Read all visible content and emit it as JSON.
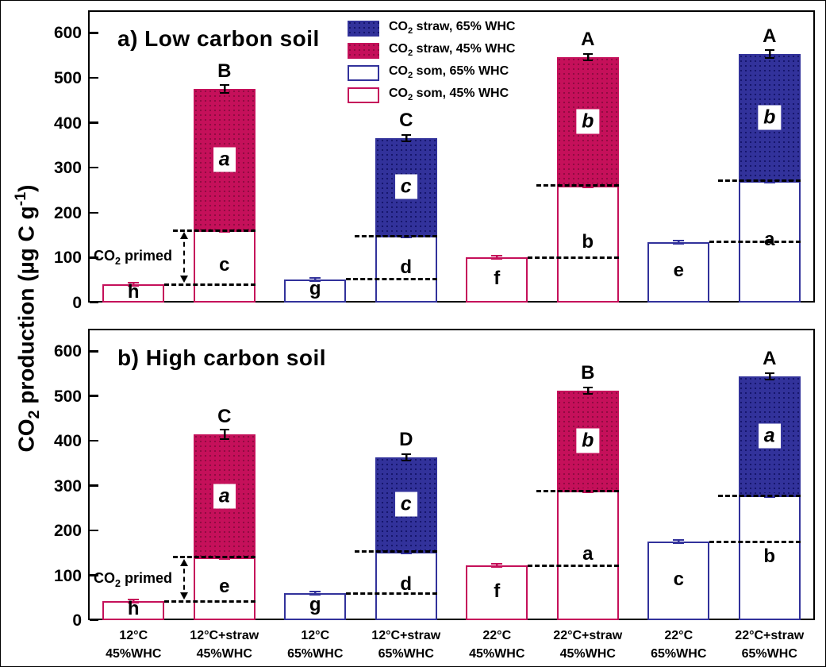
{
  "figure": {
    "background": "#FFFFFF",
    "border_color": "#000000"
  },
  "colors": {
    "straw_65_fill": "#32329B",
    "straw_65_dot": "#14146A",
    "straw_45_fill": "#C5105A",
    "straw_45_dot": "#8E0B40",
    "som_65_border": "#32329B",
    "som_45_border": "#C5105A",
    "axis": "#000000",
    "dashed_guide": "#000000"
  },
  "legend": {
    "items": [
      {
        "prefix": "CO",
        "sub": "2",
        "rest": " straw, 65% WHC",
        "swatch": "straw-65-filled"
      },
      {
        "prefix": "CO",
        "sub": "2",
        "rest": " straw, 45% WHC",
        "swatch": "straw-45-filled"
      },
      {
        "prefix": "CO",
        "sub": "2",
        "rest": " som, 65% WHC",
        "swatch": "som-65-outline"
      },
      {
        "prefix": "CO",
        "sub": "2",
        "rest": " som, 45% WHC",
        "swatch": "som-45-outline"
      }
    ]
  },
  "chart_data": {
    "type": "bar",
    "stacked": true,
    "grid": false,
    "legend_position": "top-center",
    "ylabel_parts": {
      "pre": "CO",
      "sub": "2",
      "mid": " production (µg C g",
      "sup": "-1",
      "post": ")"
    },
    "yticks": [
      0,
      100,
      200,
      300,
      400,
      500,
      600
    ],
    "ylim": [
      0,
      650
    ],
    "categories": [
      [
        "12°C",
        "45%WHC"
      ],
      [
        "12°C+straw",
        "45%WHC"
      ],
      [
        "12°C",
        "65%WHC"
      ],
      [
        "12°C+straw",
        "65%WHC"
      ],
      [
        "22°C",
        "45%WHC"
      ],
      [
        "22°C+straw",
        "45%WHC"
      ],
      [
        "22°C",
        "65%WHC"
      ],
      [
        "22°C+straw",
        "65%WHC"
      ]
    ],
    "primed_label_parts": {
      "pre": "CO",
      "sub": "2",
      "post": " primed"
    },
    "panels": [
      {
        "id": "a",
        "title": "a) Low carbon soil",
        "bars": [
          {
            "whc": "45",
            "som": 40,
            "som_letter": "h",
            "som_err": 4
          },
          {
            "whc": "45",
            "som": 160,
            "som_letter": "c",
            "som_err": 4,
            "straw_total": 475,
            "straw_letter": "a",
            "total_letter": "B",
            "total_err": 10
          },
          {
            "whc": "65",
            "som": 52,
            "som_letter": "g",
            "som_err": 4
          },
          {
            "whc": "65",
            "som": 148,
            "som_letter": "d",
            "som_err": 4,
            "straw_total": 366,
            "straw_letter": "c",
            "total_letter": "C",
            "total_err": 8
          },
          {
            "whc": "45",
            "som": 100,
            "som_letter": "f",
            "som_err": 4
          },
          {
            "whc": "45",
            "som": 260,
            "som_letter": "b",
            "som_err": 5,
            "straw_total": 545,
            "straw_letter": "b",
            "total_letter": "A",
            "total_err": 8
          },
          {
            "whc": "65",
            "som": 135,
            "som_letter": "e",
            "som_err": 4
          },
          {
            "whc": "65",
            "som": 271,
            "som_letter": "a",
            "som_err": 5,
            "straw_total": 553,
            "straw_letter": "b",
            "total_letter": "A",
            "total_err": 10
          }
        ]
      },
      {
        "id": "b",
        "title": "b) High carbon soil",
        "bars": [
          {
            "whc": "45",
            "som": 42,
            "som_letter": "h",
            "som_err": 4
          },
          {
            "whc": "45",
            "som": 140,
            "som_letter": "e",
            "som_err": 5,
            "straw_total": 414,
            "straw_letter": "a",
            "total_letter": "C",
            "total_err": 12
          },
          {
            "whc": "65",
            "som": 60,
            "som_letter": "g",
            "som_err": 4
          },
          {
            "whc": "65",
            "som": 153,
            "som_letter": "d",
            "som_err": 4,
            "straw_total": 363,
            "straw_letter": "c",
            "total_letter": "D",
            "total_err": 8
          },
          {
            "whc": "45",
            "som": 122,
            "som_letter": "f",
            "som_err": 4
          },
          {
            "whc": "45",
            "som": 288,
            "som_letter": "a",
            "som_err": 5,
            "straw_total": 511,
            "straw_letter": "b",
            "total_letter": "B",
            "total_err": 8
          },
          {
            "whc": "65",
            "som": 175,
            "som_letter": "c",
            "som_err": 4
          },
          {
            "whc": "65",
            "som": 278,
            "som_letter": "b",
            "som_err": 5,
            "straw_total": 543,
            "straw_letter": "a",
            "total_letter": "A",
            "total_err": 8
          }
        ]
      }
    ]
  }
}
